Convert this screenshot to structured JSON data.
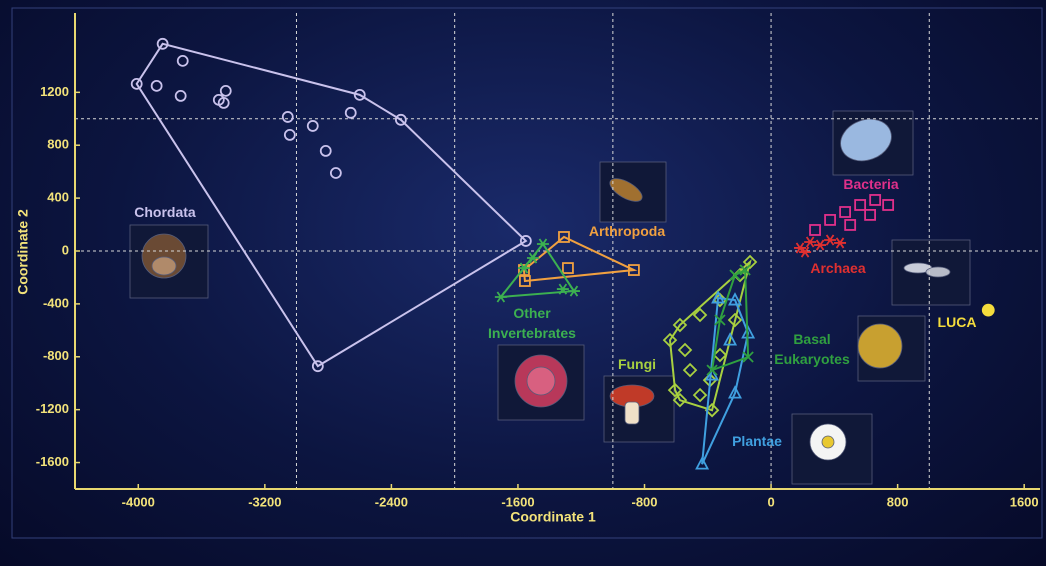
{
  "chart_data": {
    "type": "scatter",
    "x_label": "Coordinate 1",
    "y_label": "Coordinate 2",
    "xlim": [
      -4400,
      1700
    ],
    "ylim": [
      -1800,
      1800
    ],
    "xticks": [
      -4000,
      -3200,
      -2400,
      -1600,
      -800,
      0,
      800,
      1600
    ],
    "yticks": [
      -1600,
      -1200,
      -800,
      -400,
      0,
      400,
      800,
      1200
    ],
    "xgrid": [
      -3000,
      -2000,
      -1000,
      0,
      1000
    ],
    "ygrid": [
      0,
      1000
    ],
    "grid": true,
    "series": [
      {
        "name": "Chordata",
        "color": "#c9c2ec",
        "marker": "circle",
        "hull": true,
        "x": [
          -3846,
          -3719,
          -4010,
          -3884,
          -3732,
          -3447,
          -3460,
          -3491,
          -2600,
          -3055,
          -3042,
          -2897,
          -2657,
          -2340,
          -2815,
          -2751,
          -1550,
          -2865
        ],
        "y": [
          1567,
          1438,
          1264,
          1249,
          1173,
          1211,
          1120,
          1143,
          1181,
          1014,
          878,
          946,
          1045,
          992,
          757,
          590,
          76,
          -871
        ]
      },
      {
        "name": "Arthropoda",
        "color": "#f0a040",
        "marker": "square",
        "hull": true,
        "x": [
          -1309,
          -867,
          -1562,
          -1556,
          -1284
        ],
        "y": [
          106,
          -144,
          -144,
          -227,
          -129
        ]
      },
      {
        "name": "Other Invertebrates",
        "color": "#3cb050",
        "marker": "asterisk",
        "hull": true,
        "x": [
          -1442,
          -1708,
          -1316,
          -1246,
          -1562,
          -1505
        ],
        "y": [
          53,
          -348,
          -288,
          -303,
          -129,
          -53
        ]
      },
      {
        "name": "Fungi",
        "color": "#a8d040",
        "marker": "diamond",
        "hull": true,
        "x": [
          -133,
          -196,
          -323,
          -449,
          -576,
          -639,
          -544,
          -512,
          -607,
          -576,
          -449,
          -373,
          -386,
          -323,
          -228
        ],
        "y": [
          -83,
          -182,
          -371,
          -484,
          -560,
          -674,
          -749,
          -901,
          -1052,
          -1128,
          -1090,
          -1204,
          -977,
          -787,
          -522
        ]
      },
      {
        "name": "Plantae",
        "color": "#40a0e0",
        "marker": "triangle",
        "hull": true,
        "x": [
          -436,
          -335,
          -228,
          -145,
          -228,
          -373,
          -259
        ],
        "y": [
          -1612,
          -356,
          -371,
          -621,
          -1075,
          -939,
          -674
        ]
      },
      {
        "name": "Basal Eukaryotes",
        "color": "#30a040",
        "marker": "x",
        "hull": true,
        "x": [
          -145,
          -373,
          -228,
          -164,
          -323
        ],
        "y": [
          -802,
          -901,
          -182,
          -144,
          -522
        ]
      },
      {
        "name": "Archaea",
        "color": "#e03030",
        "marker": "asterisk",
        "hull": false,
        "x": [
          183,
          247,
          310,
          373,
          436,
          215
        ],
        "y": [
          23,
          68,
          45,
          83,
          61,
          -8
        ]
      },
      {
        "name": "Bacteria",
        "color": "#e0308a",
        "marker": "square",
        "hull": false,
        "x": [
          278,
          373,
          468,
          563,
          658,
          740,
          626,
          500
        ],
        "y": [
          159,
          235,
          295,
          348,
          386,
          348,
          273,
          197
        ]
      },
      {
        "name": "LUCA",
        "color": "#f4dc3c",
        "marker": "dot",
        "hull": false,
        "x": [
          1373
        ],
        "y": [
          -447
        ]
      }
    ]
  }
}
